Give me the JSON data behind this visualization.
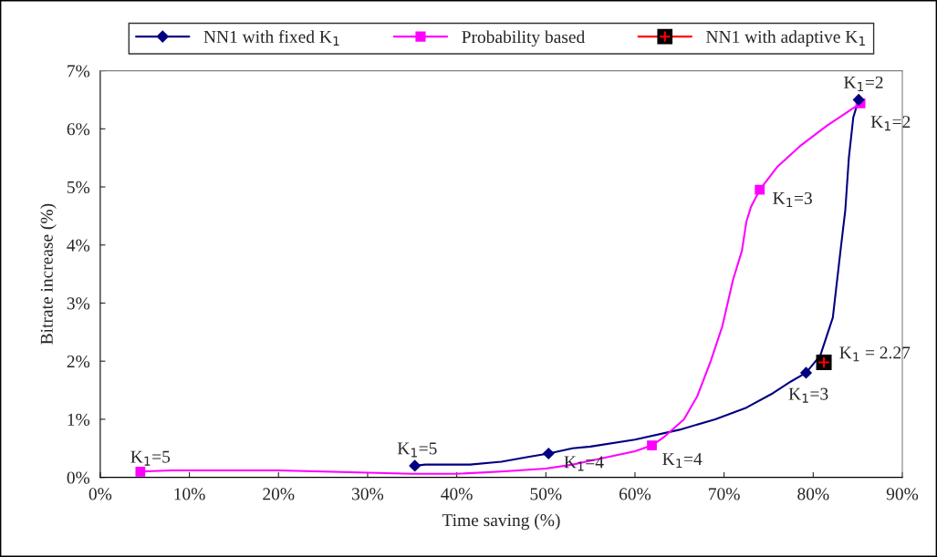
{
  "chart_data": {
    "type": "line",
    "xlabel": "Time saving (%)",
    "ylabel": "Bitrate increase (%)",
    "xlim": [
      0,
      90
    ],
    "ylim": [
      0,
      7
    ],
    "xticks": [
      {
        "value": 0,
        "label": "0%"
      },
      {
        "value": 10,
        "label": "10%"
      },
      {
        "value": 20,
        "label": "20%"
      },
      {
        "value": 30,
        "label": "30%"
      },
      {
        "value": 40,
        "label": "40%"
      },
      {
        "value": 50,
        "label": "50%"
      },
      {
        "value": 60,
        "label": "60%"
      },
      {
        "value": 70,
        "label": "70%"
      },
      {
        "value": 80,
        "label": "80%"
      },
      {
        "value": 90,
        "label": "90%"
      }
    ],
    "yticks": [
      {
        "value": 0,
        "label": "0%"
      },
      {
        "value": 1,
        "label": "1%"
      },
      {
        "value": 2,
        "label": "2%"
      },
      {
        "value": 3,
        "label": "3%"
      },
      {
        "value": 4,
        "label": "4%"
      },
      {
        "value": 5,
        "label": "5%"
      },
      {
        "value": 6,
        "label": "6%"
      },
      {
        "value": 7,
        "label": "7%"
      }
    ],
    "grid": false,
    "legend": "top",
    "series": [
      {
        "color": "#000080",
        "marker": "none",
        "x": [
          35.3,
          36.5,
          41.5,
          45,
          48,
          50.3,
          53,
          55,
          60,
          65,
          69,
          72.5,
          75.5,
          77.5,
          79.2,
          80.8,
          82.2,
          83.1,
          83.6,
          84,
          84.5,
          85.1
        ],
        "values": [
          0.2,
          0.22,
          0.22,
          0.27,
          0.35,
          0.41,
          0.5,
          0.53,
          0.65,
          0.82,
          1.0,
          1.2,
          1.45,
          1.65,
          1.8,
          2.1,
          2.75,
          3.95,
          4.6,
          5.5,
          6.2,
          6.5
        ]
      },
      {
        "color": "#ff00ff",
        "marker": "none",
        "x": [
          4.5,
          8,
          20,
          30,
          35,
          40,
          45,
          50,
          53,
          57,
          60,
          61.9,
          63.3,
          65.5,
          67,
          68.5,
          69.8,
          71,
          72,
          72.5,
          73,
          74,
          76,
          78.5,
          81.5,
          85.3
        ],
        "values": [
          0.1,
          0.12,
          0.12,
          0.08,
          0.06,
          0.06,
          0.1,
          0.15,
          0.22,
          0.35,
          0.45,
          0.55,
          0.7,
          1.0,
          1.4,
          2.0,
          2.6,
          3.4,
          3.9,
          4.4,
          4.65,
          4.95,
          5.35,
          5.7,
          6.05,
          6.44
        ]
      },
      {
        "type": "scatter",
        "name": "NN1 with fixed K$_{1}$",
        "color": "#000080",
        "marker": "diamond",
        "x": [
          35.3,
          50.3,
          79.2,
          85.1
        ],
        "values": [
          0.2,
          0.41,
          1.8,
          6.5
        ]
      },
      {
        "type": "scatter",
        "name": "Probability based",
        "color": "#ff00ff",
        "marker": "square",
        "x": [
          4.5,
          61.9,
          74,
          85.3
        ],
        "values": [
          0.1,
          0.55,
          4.95,
          6.44
        ]
      },
      {
        "type": "scatter",
        "name": "NN1 with adaptive K$_{1}$",
        "color": "#ff0000",
        "colors": [
          "#000000"
        ],
        "marker": "square",
        "x": [
          81.2
        ],
        "values": [
          1.98
        ]
      }
    ],
    "annotations": [
      {
        "text": "K$_{1}$=5",
        "x": 4.5,
        "y": 0.1
      },
      {
        "text": "K$_{1}$=5",
        "x": 35.3,
        "y": 0.2
      },
      {
        "text": "K$_{1}$=4",
        "x": 50.3,
        "y": 0.41
      },
      {
        "text": "K$_{1}$=4",
        "x": 61.9,
        "y": 0.55
      },
      {
        "text": "K$_{1}$=3",
        "x": 79.2,
        "y": 1.8
      },
      {
        "text": "K$_{1}$=3",
        "x": 74,
        "y": 4.95
      },
      {
        "text": "K$_{1}$=2",
        "x": 85.1,
        "y": 6.5
      },
      {
        "text": "K$_{1}$=2",
        "x": 85.3,
        "y": 6.44
      },
      {
        "text": "K$_{1}$ = 2.27",
        "x": 81.2,
        "y": 1.98
      }
    ]
  }
}
